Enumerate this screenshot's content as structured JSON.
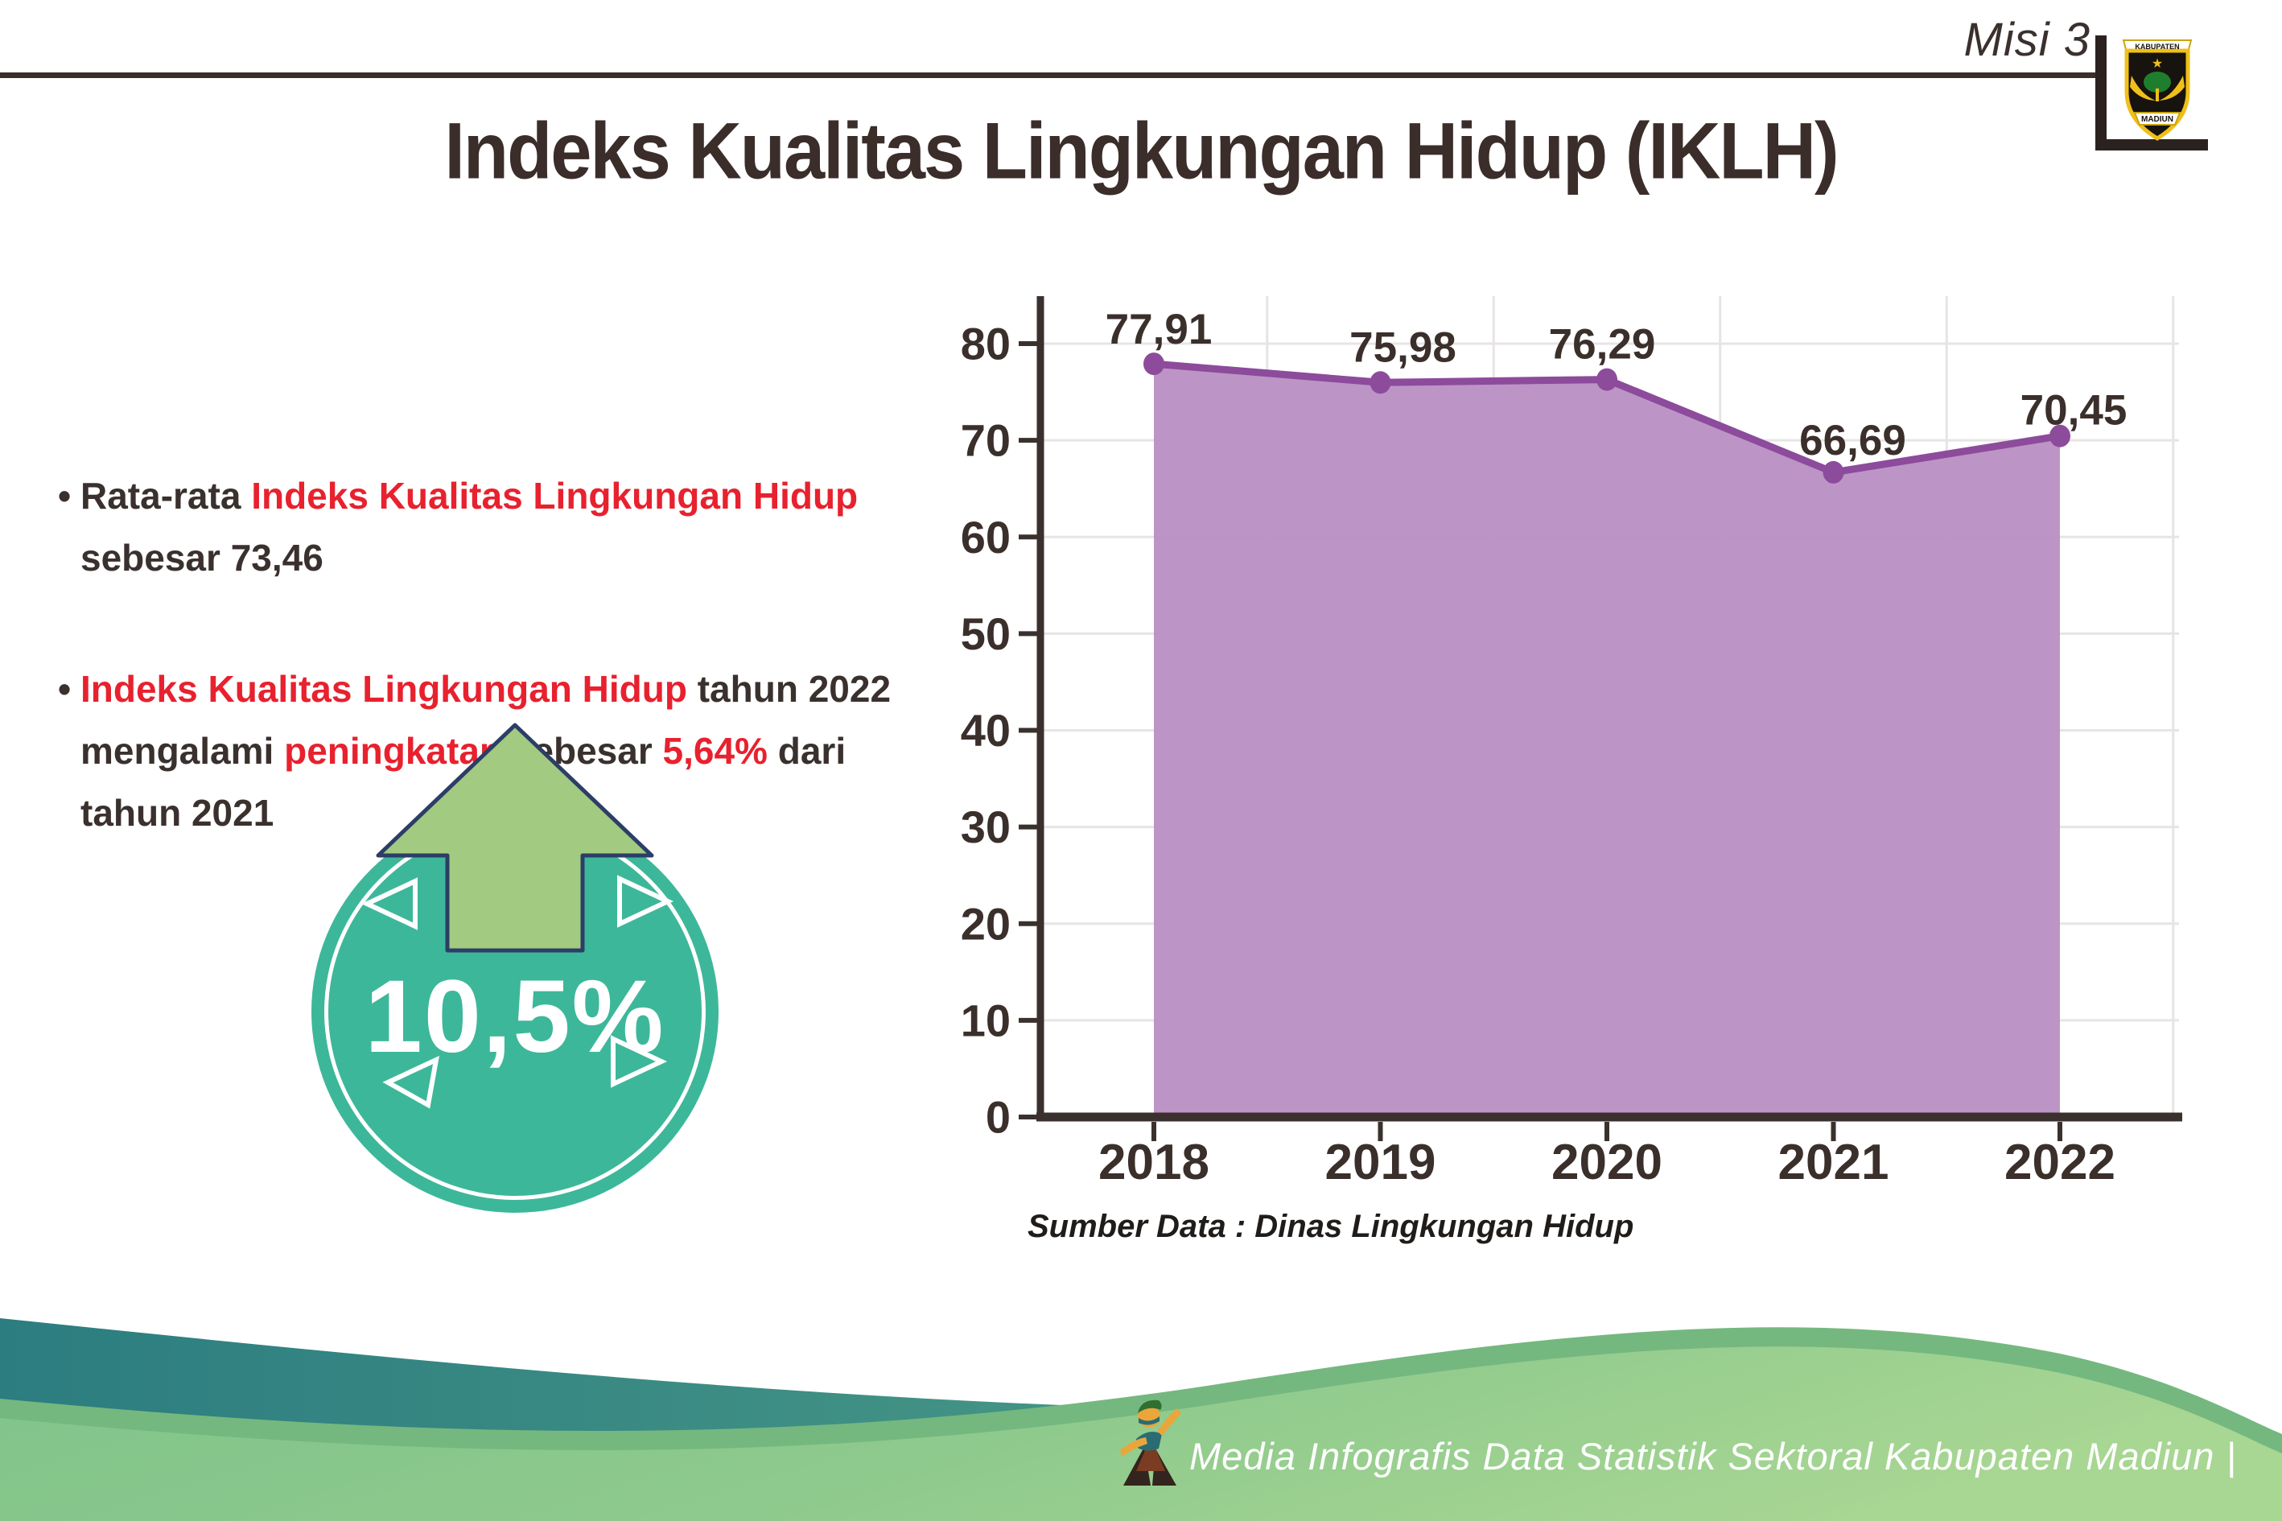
{
  "header": {
    "misi_label": "Misi 3",
    "logo": {
      "top_text": "KABUPATEN",
      "bottom_text": "MADIUN"
    }
  },
  "title": "Indeks Kualitas Lingkungan Hidup (IKLH)",
  "bullets": [
    {
      "tokens": [
        {
          "t": "Rata-rata ",
          "c": "dark"
        },
        {
          "t": "Indeks Kualitas Lingkungan Hidup",
          "c": "red"
        },
        {
          "br": true
        },
        {
          "t": "sebesar 73,46",
          "c": "dark"
        }
      ]
    },
    {
      "tokens": [
        {
          "t": "Indeks Kualitas Lingkungan Hidup",
          "c": "red"
        },
        {
          "t": " tahun 2022",
          "c": "dark"
        },
        {
          "br": true
        },
        {
          "t": "mengalami ",
          "c": "dark"
        },
        {
          "t": "peningkatan",
          "c": "red"
        },
        {
          "t": " sebesar ",
          "c": "dark"
        },
        {
          "t": "5,64%",
          "c": "red"
        },
        {
          "t": " dari",
          "c": "dark"
        },
        {
          "br": true
        },
        {
          "t": "tahun 2021",
          "c": "dark"
        }
      ]
    }
  ],
  "badge": {
    "value": "10,5%",
    "direction": "up"
  },
  "chart_data": {
    "type": "area",
    "title": "",
    "xlabel": "",
    "ylabel": "",
    "categories": [
      "2018",
      "2019",
      "2020",
      "2021",
      "2022"
    ],
    "series": [
      {
        "name": "IKLH",
        "values": [
          77.91,
          75.98,
          76.29,
          66.69,
          70.45
        ],
        "value_labels": [
          "77,91",
          "75,98",
          "76,29",
          "66,69",
          "70,45"
        ]
      }
    ],
    "ylim": [
      0,
      80
    ],
    "yticks": [
      0,
      10,
      20,
      30,
      40,
      50,
      60,
      70,
      80
    ],
    "grid": true,
    "legend": false,
    "area_color": "#b88fc3",
    "line_color": "#8d4b9c",
    "axis_color": "#3a312e",
    "gridline_color": "#e7e4e4",
    "label_color": "#3a2f2b"
  },
  "source_note": "Sumber Data : Dinas Lingkungan Hidup",
  "footer": {
    "credit": "Media Infografis Data Statistik Sektoral Kabupaten Madiun |"
  },
  "colors": {
    "text_dark": "#3a312e",
    "accent_red": "#e8212e",
    "badge_teal": "#3db79a",
    "arrow_green": "#a2ca81",
    "arrow_outline": "#2c3e66",
    "footer_teal_dark": "#2c7d80",
    "footer_teal_light": "#57a68a",
    "footer_band_green": "#74b87f",
    "footer_green_light": "#7fc38a",
    "footer_green_lighter": "#a8d693"
  }
}
